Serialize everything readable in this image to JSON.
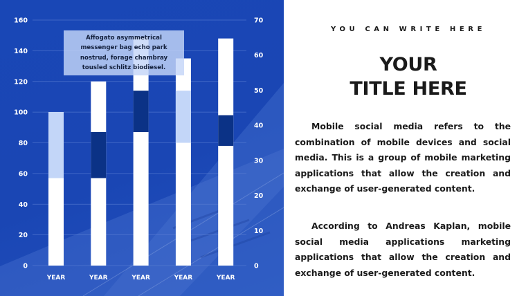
{
  "colors": {
    "background_blue": "#1a47b5",
    "bar_white": "#ffffff",
    "segment_light": "#c3d6f8",
    "segment_dark": "#0b3286",
    "text_dark": "#1a1a1a"
  },
  "callout": {
    "text": "Affogato asymmetrical messenger bag echo park nostrud, forage chambray tousled schlitz biodiesel."
  },
  "right": {
    "kicker": "YOU CAN WRITE HERE",
    "title_line1": "YOUR",
    "title_line2": "TITLE HERE",
    "paragraph1": "Mobile social media refers to the combination of mobile devices and social media. This is a group of mobile marketing applications that allow the creation and exchange of user-generated content.",
    "paragraph2": "According to Andreas Kaplan, mobile social media applications marketing applications that allow the creation and exchange of user-generated content."
  },
  "chart_data": {
    "type": "bar",
    "categories": [
      "YEAR",
      "YEAR",
      "YEAR",
      "YEAR",
      "YEAR"
    ],
    "left_axis": {
      "ylim": [
        0,
        160
      ],
      "ticks": [
        0,
        20,
        40,
        60,
        80,
        100,
        120,
        140,
        160
      ]
    },
    "right_axis": {
      "ylim": [
        0,
        70
      ],
      "ticks": [
        0,
        10,
        20,
        30,
        40,
        50,
        60,
        70
      ]
    },
    "grid": true,
    "bar_totals": [
      100,
      120,
      149,
      135,
      148
    ],
    "highlighted_ranges": [
      {
        "from": 57,
        "to": 100,
        "shade": "light"
      },
      {
        "from": 57,
        "to": 87,
        "shade": "dark"
      },
      {
        "from": 87,
        "to": 114,
        "shade": "dark"
      },
      {
        "from": 80,
        "to": 114,
        "shade": "light"
      },
      {
        "from": 78,
        "to": 98,
        "shade": "dark"
      }
    ]
  }
}
